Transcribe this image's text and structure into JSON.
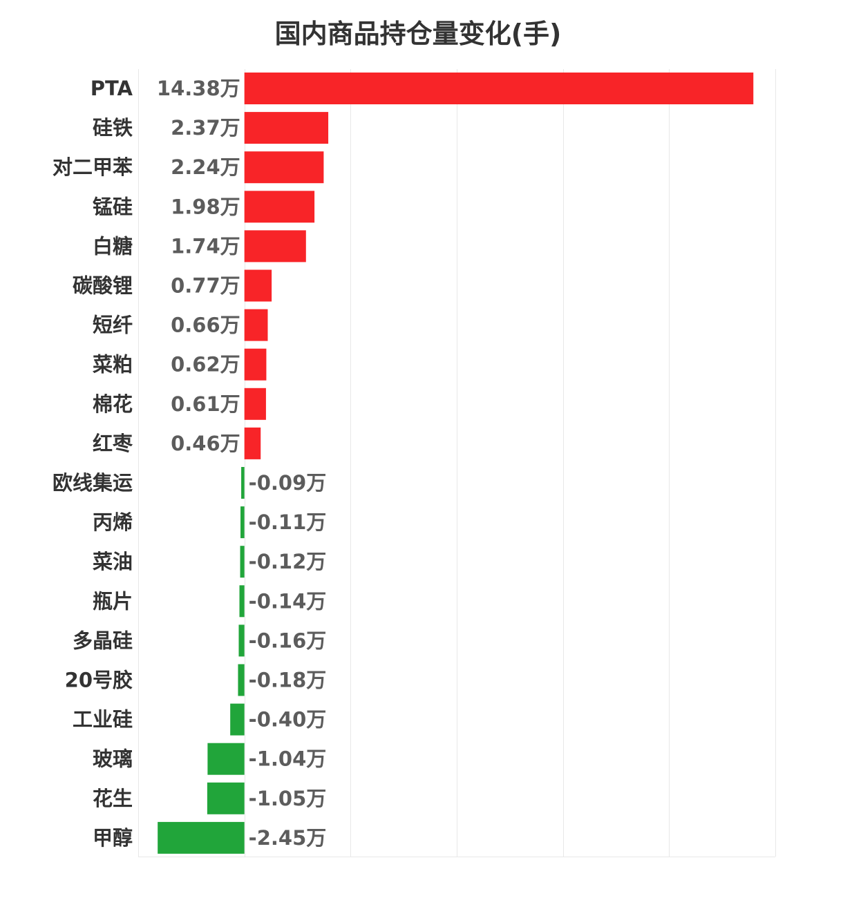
{
  "chart_data": {
    "type": "bar",
    "orientation": "horizontal",
    "title": "国内商品持仓量变化(手)",
    "unit_suffix": "万",
    "categories": [
      "PTA",
      "硅铁",
      "对二甲苯",
      "锰硅",
      "白糖",
      "碳酸锂",
      "短纤",
      "菜粕",
      "棉花",
      "红枣",
      "欧线集运",
      "丙烯",
      "菜油",
      "瓶片",
      "多晶硅",
      "20号胶",
      "工业硅",
      "玻璃",
      "花生",
      "甲醇"
    ],
    "values": [
      14.38,
      2.37,
      2.24,
      1.98,
      1.74,
      0.77,
      0.66,
      0.62,
      0.61,
      0.46,
      -0.09,
      -0.11,
      -0.12,
      -0.14,
      -0.16,
      -0.18,
      -0.4,
      -1.04,
      -1.05,
      -2.45
    ],
    "value_labels": [
      "14.38万",
      "2.37万",
      "2.24万",
      "1.98万",
      "1.74万",
      "0.77万",
      "0.66万",
      "0.62万",
      "0.61万",
      "0.46万",
      "-0.09万",
      "-0.11万",
      "-0.12万",
      "-0.14万",
      "-0.16万",
      "-0.18万",
      "-0.40万",
      "-1.04万",
      "-1.05万",
      "-2.45万"
    ],
    "xlim": [
      -3,
      15
    ],
    "grid_ticks": [
      -3,
      0,
      3,
      6,
      9,
      12,
      15
    ],
    "grid": true,
    "colors": {
      "positive": "#f82428",
      "negative": "#21a53a",
      "category_text": "#333333",
      "value_text": "#5c5c5c",
      "grid": "#e8e8e8"
    }
  }
}
